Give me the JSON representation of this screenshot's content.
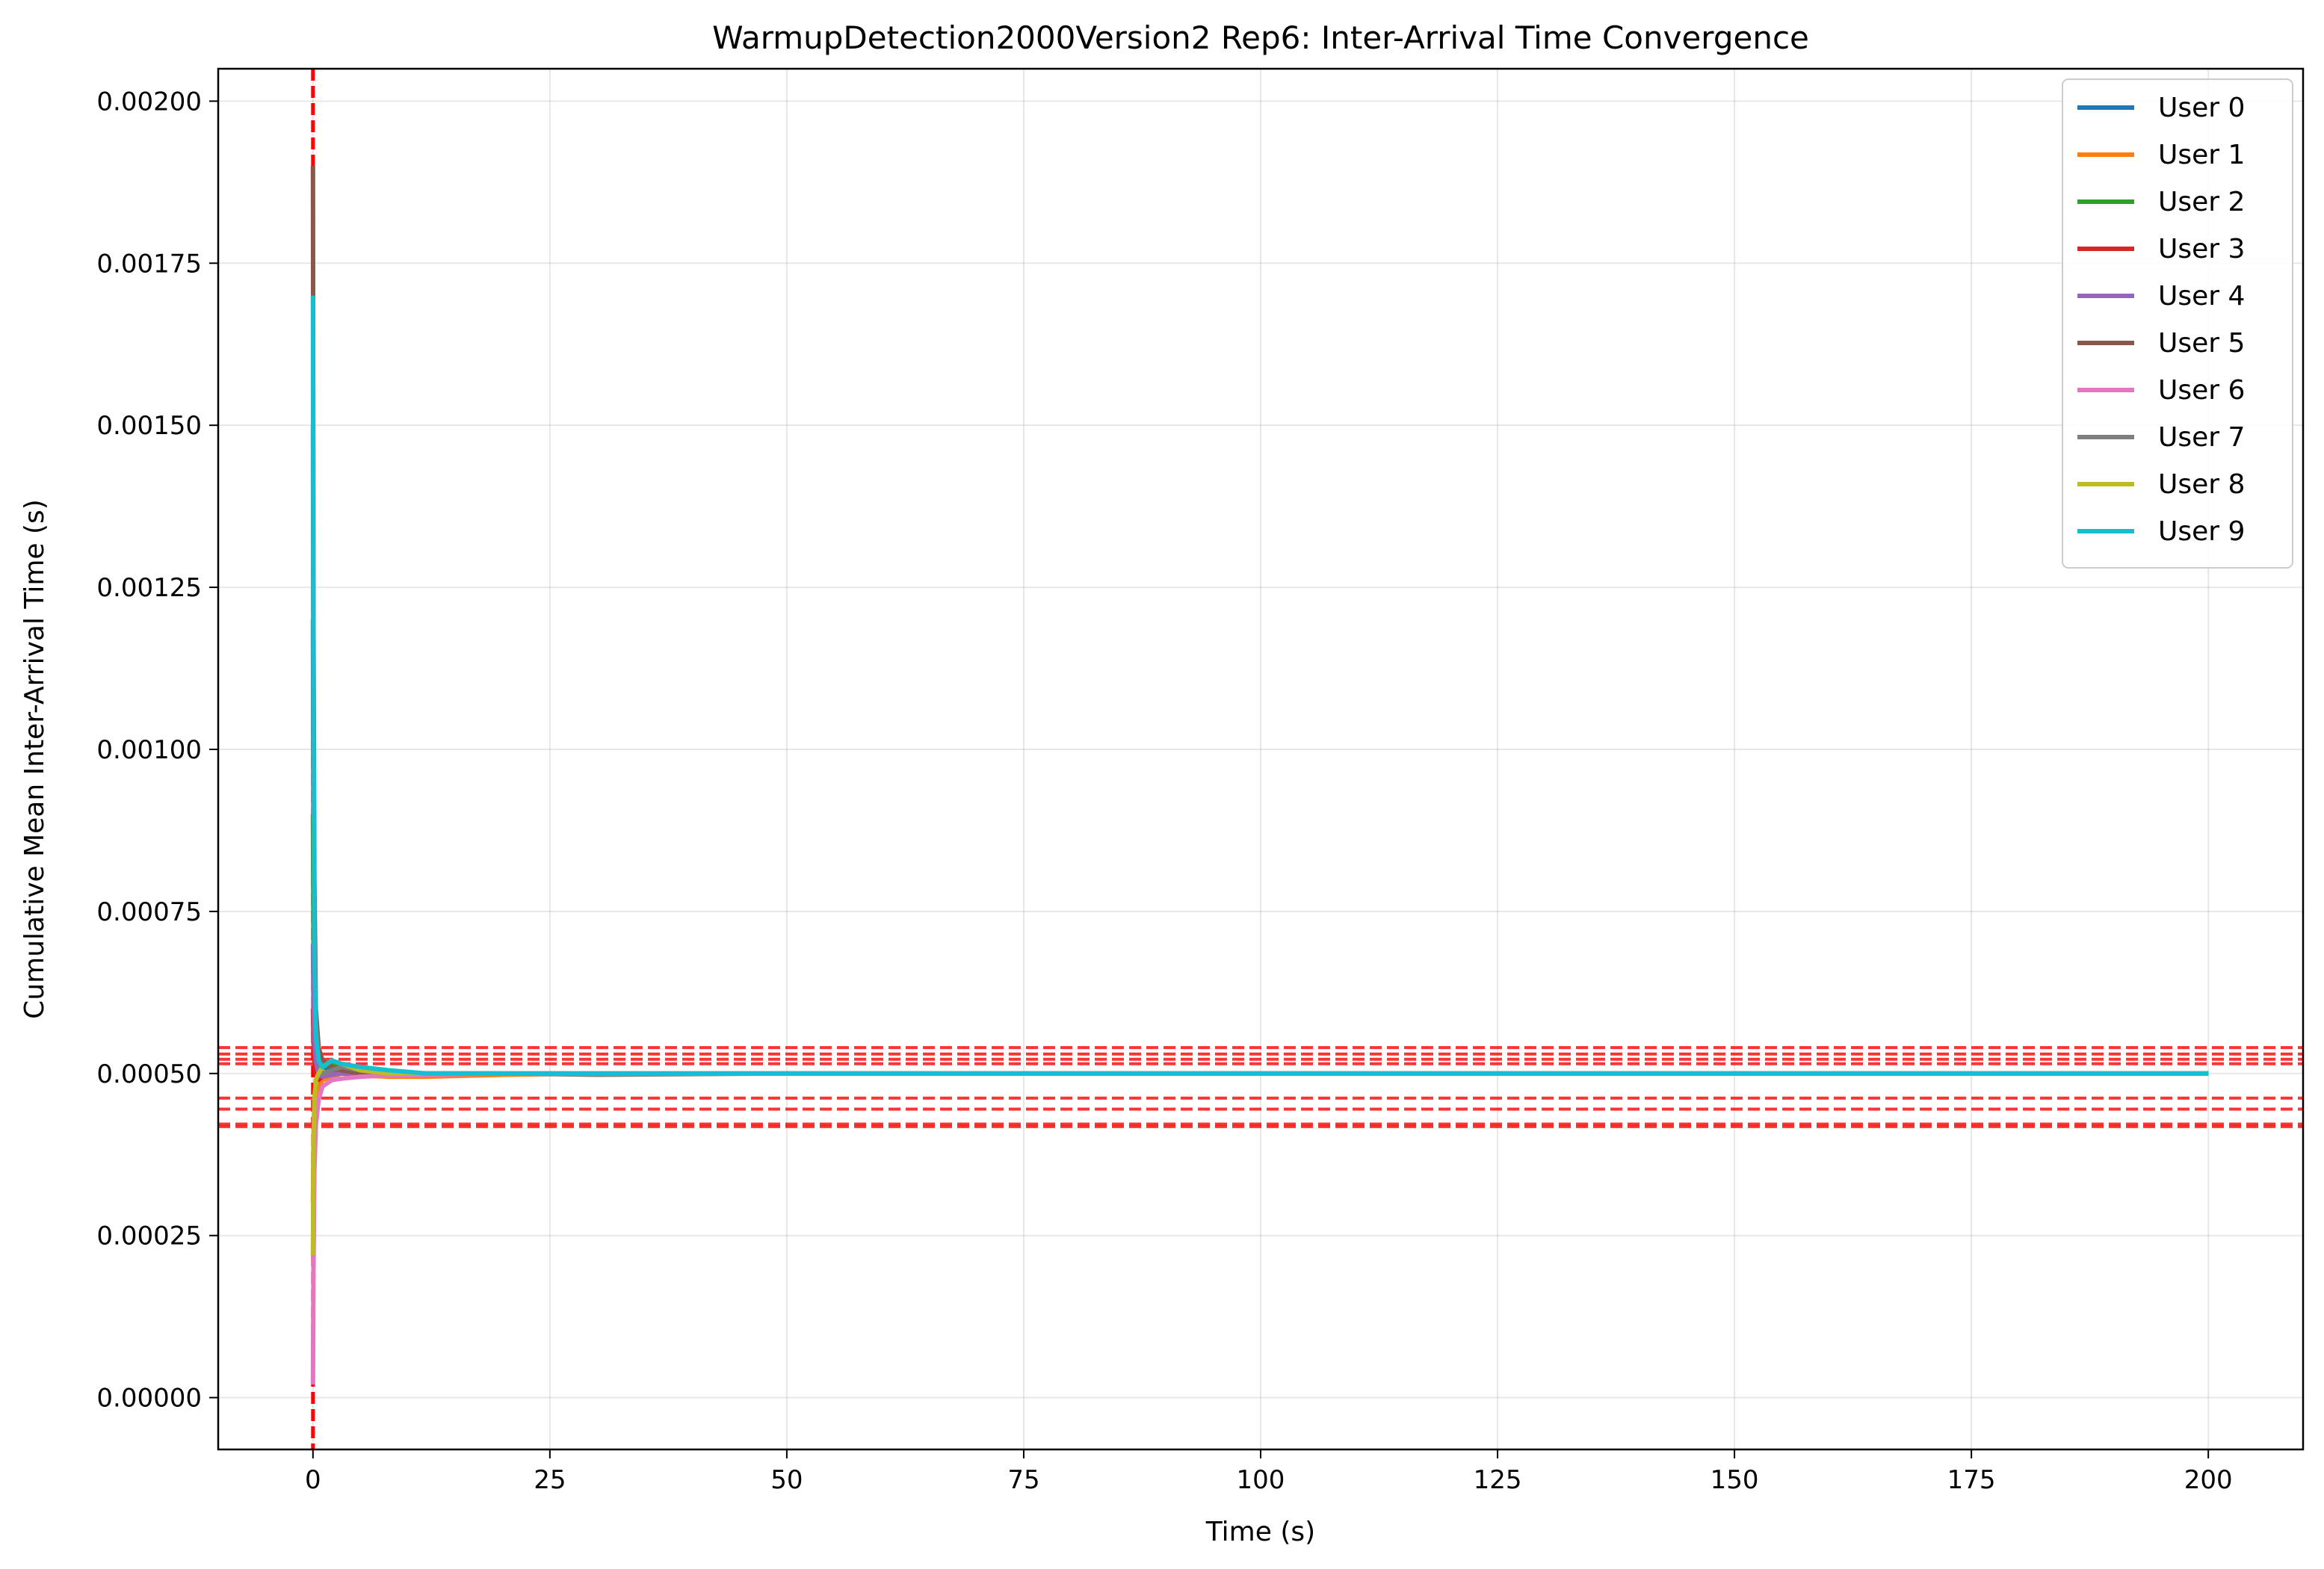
{
  "chart_data": {
    "type": "line",
    "title": "WarmupDetection2000Version2 Rep6: Inter-Arrival Time Convergence",
    "xlabel": "Time (s)",
    "ylabel": "Cumulative Mean Inter-Arrival Time (s)",
    "xlim": [
      -10,
      210
    ],
    "ylim": [
      -8e-05,
      0.00205
    ],
    "xticks": [
      0,
      25,
      50,
      75,
      100,
      125,
      150,
      175,
      200
    ],
    "xtick_labels": [
      "0",
      "25",
      "50",
      "75",
      "100",
      "125",
      "150",
      "175",
      "200"
    ],
    "yticks": [
      0,
      0.00025,
      0.0005,
      0.00075,
      0.001,
      0.00125,
      0.0015,
      0.00175,
      0.002
    ],
    "ytick_labels": [
      "0.00000",
      "0.00025",
      "0.00050",
      "0.00075",
      "0.00100",
      "0.00125",
      "0.00150",
      "0.00175",
      "0.00200"
    ],
    "grid": true,
    "legend": "top-right",
    "series": [
      {
        "name": "User 0",
        "color": "#1f77b4",
        "x": [
          0,
          0.05,
          0.15,
          0.3,
          0.6,
          1,
          2,
          3,
          5,
          8,
          12,
          20,
          30,
          50,
          100,
          150,
          200
        ],
        "y": [
          0.0012,
          0.0008,
          0.0006,
          0.00055,
          0.00052,
          0.00051,
          0.000505,
          0.00051,
          0.000505,
          0.0005,
          0.000498,
          0.0005,
          0.0005,
          0.0005,
          0.0005,
          0.0005,
          0.0005
        ]
      },
      {
        "name": "User 1",
        "color": "#ff7f0e",
        "x": [
          0,
          0.05,
          0.15,
          0.3,
          0.6,
          1,
          2,
          3,
          5,
          8,
          12,
          20,
          30,
          50,
          100,
          150,
          200
        ],
        "y": [
          0.0003,
          0.0004,
          0.00045,
          0.00047,
          0.00048,
          0.00049,
          0.000495,
          0.0005,
          0.000497,
          0.000495,
          0.000495,
          0.000498,
          0.0005,
          0.0005,
          0.0005,
          0.0005,
          0.0005
        ]
      },
      {
        "name": "User 2",
        "color": "#2ca02c",
        "x": [
          0,
          0.05,
          0.15,
          0.3,
          0.6,
          1,
          2,
          3,
          5,
          8,
          12,
          20,
          30,
          50,
          100,
          150,
          200
        ],
        "y": [
          0.0009,
          0.0007,
          0.0006,
          0.00055,
          0.00052,
          0.00051,
          0.000515,
          0.00051,
          0.000505,
          0.0005,
          0.0005,
          0.0005,
          0.0005,
          0.0005,
          0.0005,
          0.0005,
          0.0005
        ]
      },
      {
        "name": "User 3",
        "color": "#d62728",
        "x": [
          0,
          0.05,
          0.15,
          0.3,
          0.6,
          1,
          2,
          3,
          5,
          8,
          12,
          20,
          30,
          50,
          100,
          150,
          200
        ],
        "y": [
          0.0006,
          0.00055,
          0.00052,
          0.0005,
          0.00049,
          0.000495,
          0.0005,
          0.000505,
          0.0005,
          0.0005,
          0.0005,
          0.0005,
          0.0005,
          0.0005,
          0.0005,
          0.0005,
          0.0005
        ]
      },
      {
        "name": "User 4",
        "color": "#9467bd",
        "x": [
          0,
          0.05,
          0.15,
          0.3,
          0.6,
          1,
          2,
          3,
          5,
          8,
          12,
          20,
          30,
          50,
          100,
          150,
          200
        ],
        "y": [
          0.0007,
          0.0006,
          0.00055,
          0.00052,
          0.0005,
          0.000495,
          0.000498,
          0.0005,
          0.000498,
          0.0005,
          0.0005,
          0.0005,
          0.0005,
          0.0005,
          0.0005,
          0.0005,
          0.0005
        ]
      },
      {
        "name": "User 5",
        "color": "#8c564b",
        "x": [
          0,
          0.05,
          0.15,
          0.3,
          0.6,
          1,
          2,
          3,
          5,
          8,
          12,
          20,
          30,
          50,
          100,
          150,
          200
        ],
        "y": [
          0.0019,
          0.0012,
          0.0008,
          0.0006,
          0.00054,
          0.00052,
          0.00051,
          0.000505,
          0.0005,
          0.0005,
          0.0005,
          0.0005,
          0.0005,
          0.0005,
          0.0005,
          0.0005,
          0.0005
        ]
      },
      {
        "name": "User 6",
        "color": "#e377c2",
        "x": [
          0,
          0.05,
          0.15,
          0.3,
          0.6,
          1,
          2,
          3,
          5,
          8,
          12,
          20,
          30,
          50,
          100,
          150,
          200
        ],
        "y": [
          2e-05,
          0.0002,
          0.00035,
          0.00042,
          0.00046,
          0.00048,
          0.00049,
          0.000492,
          0.000495,
          0.000497,
          0.000498,
          0.0005,
          0.0005,
          0.0005,
          0.0005,
          0.0005,
          0.0005
        ]
      },
      {
        "name": "User 7",
        "color": "#7f7f7f",
        "x": [
          0,
          0.05,
          0.15,
          0.3,
          0.6,
          1,
          2,
          3,
          5,
          8,
          12,
          20,
          30,
          50,
          100,
          150,
          200
        ],
        "y": [
          0.0015,
          0.0009,
          0.0007,
          0.00058,
          0.00052,
          0.0005,
          0.000505,
          0.00051,
          0.000505,
          0.0005,
          0.0005,
          0.0005,
          0.000498,
          0.0005,
          0.0005,
          0.0005,
          0.0005
        ]
      },
      {
        "name": "User 8",
        "color": "#bcbd22",
        "x": [
          0,
          0.05,
          0.15,
          0.3,
          0.6,
          1,
          2,
          3,
          5,
          8,
          12,
          20,
          30,
          50,
          100,
          150,
          200
        ],
        "y": [
          0.00022,
          0.0004,
          0.00046,
          0.00049,
          0.0005,
          0.00051,
          0.00052,
          0.000515,
          0.000505,
          0.0005,
          0.0005,
          0.0005,
          0.0005,
          0.0005,
          0.0005,
          0.0005,
          0.0005
        ]
      },
      {
        "name": "User 9",
        "color": "#17becf",
        "x": [
          0,
          0.05,
          0.15,
          0.3,
          0.6,
          1,
          2,
          3,
          5,
          8,
          12,
          20,
          30,
          50,
          100,
          150,
          200
        ],
        "y": [
          0.0017,
          0.0011,
          0.0007,
          0.00056,
          0.00052,
          0.00051,
          0.00052,
          0.000515,
          0.00051,
          0.000505,
          0.0005,
          0.0005,
          0.0005,
          0.0005,
          0.0005,
          0.0005,
          0.0005
        ]
      }
    ],
    "reference_lines": {
      "color": "#ff0000",
      "vertical_x": [
        0
      ],
      "horizontal_y": [
        0.00054,
        0.00053,
        0.000522,
        0.000515,
        0.000462,
        0.000445,
        0.000422,
        0.000418
      ]
    }
  }
}
